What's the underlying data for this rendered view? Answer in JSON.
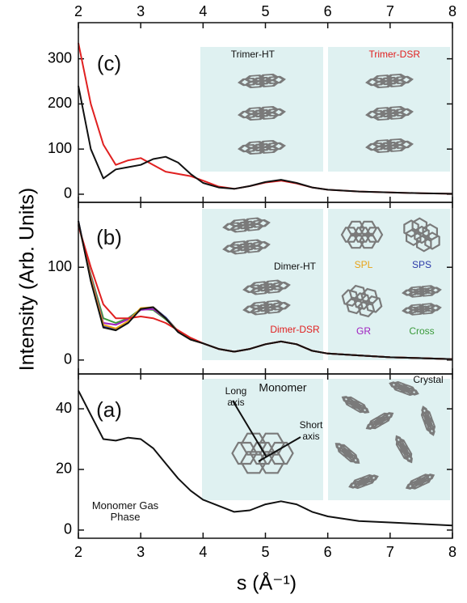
{
  "chart_data": [
    {
      "type": "line",
      "xlim": [
        2,
        8
      ],
      "xticks": [
        2,
        3,
        4,
        5,
        6,
        7,
        8
      ],
      "ylim": [
        -18,
        380
      ],
      "yticks": [
        0,
        100,
        200,
        300
      ],
      "annotations": [
        "(c)"
      ],
      "x": [
        2,
        2.2,
        2.4,
        2.6,
        2.8,
        3.0,
        3.2,
        3.4,
        3.6,
        3.8,
        4.0,
        4.25,
        4.5,
        4.75,
        5.0,
        5.25,
        5.5,
        5.75,
        6,
        6.5,
        7,
        7.5,
        8
      ],
      "series": [
        {
          "name": "Trimer-HT",
          "color": "#111111",
          "values": [
            240,
            100,
            35,
            55,
            60,
            65,
            78,
            83,
            70,
            45,
            25,
            15,
            12,
            18,
            27,
            32,
            25,
            15,
            10,
            6,
            4,
            2,
            1
          ]
        },
        {
          "name": "Trimer-DSR",
          "color": "#e02020",
          "values": [
            335,
            200,
            110,
            65,
            75,
            80,
            65,
            50,
            45,
            40,
            30,
            17,
            12,
            18,
            26,
            30,
            24,
            15,
            10,
            6,
            4,
            2,
            1
          ]
        }
      ]
    },
    {
      "type": "line",
      "xlim": [
        2,
        8
      ],
      "xticks": [
        2,
        3,
        4,
        5,
        6,
        7,
        8
      ],
      "ylim": [
        -15,
        170
      ],
      "yticks": [
        0,
        100
      ],
      "ylabel": "Intensity (Arb. Units)",
      "annotations": [
        "(b)"
      ],
      "x": [
        2,
        2.2,
        2.4,
        2.6,
        2.8,
        3.0,
        3.2,
        3.4,
        3.6,
        3.8,
        4.0,
        4.25,
        4.5,
        4.75,
        5.0,
        5.25,
        5.5,
        5.75,
        6,
        6.5,
        7,
        7.5,
        8
      ],
      "series": [
        {
          "name": "Dimer-HT",
          "color": "#111111",
          "values": [
            150,
            85,
            35,
            32,
            40,
            55,
            57,
            45,
            30,
            22,
            18,
            12,
            9,
            12,
            17,
            20,
            17,
            10,
            7,
            5,
            3,
            2,
            1
          ]
        },
        {
          "name": "Dimer-DSR",
          "color": "#e02020",
          "values": [
            145,
            100,
            60,
            45,
            45,
            47,
            45,
            40,
            32,
            24,
            18,
            12,
            9,
            12,
            17,
            20,
            17,
            10,
            7,
            5,
            3,
            2,
            1
          ]
        },
        {
          "name": "SPL",
          "color": "#e8a317",
          "values": [
            148,
            88,
            38,
            34,
            42,
            56,
            57,
            45,
            31,
            22,
            18,
            12,
            9,
            12,
            17,
            20,
            17,
            10,
            7,
            5,
            3,
            2,
            1
          ]
        },
        {
          "name": "SPS",
          "color": "#2b3aa8",
          "values": [
            150,
            86,
            36,
            33,
            41,
            55,
            57,
            46,
            31,
            22,
            18,
            12,
            9,
            12,
            17,
            20,
            17,
            10,
            7,
            5,
            3,
            2,
            1
          ]
        },
        {
          "name": "GR",
          "color": "#a020c0",
          "values": [
            147,
            90,
            40,
            38,
            44,
            54,
            55,
            45,
            31,
            22,
            18,
            12,
            9,
            12,
            17,
            20,
            17,
            10,
            7,
            5,
            3,
            2,
            1
          ]
        },
        {
          "name": "Cross",
          "color": "#3a9a3a",
          "values": [
            146,
            92,
            45,
            40,
            45,
            55,
            54,
            44,
            31,
            22,
            18,
            12,
            9,
            12,
            17,
            20,
            17,
            10,
            7,
            5,
            3,
            2,
            1
          ]
        }
      ]
    },
    {
      "type": "line",
      "xlim": [
        2,
        8
      ],
      "xticks": [
        2,
        3,
        4,
        5,
        6,
        7,
        8
      ],
      "ylim": [
        -2.7,
        51.5
      ],
      "yticks": [
        0,
        20,
        40
      ],
      "xlabel": "s (Å⁻¹)",
      "annotations": [
        "(a)",
        "Monomer",
        "Crystal",
        "Long axis",
        "Short axis"
      ],
      "x": [
        2,
        2.2,
        2.4,
        2.6,
        2.8,
        3.0,
        3.2,
        3.4,
        3.6,
        3.8,
        4.0,
        4.25,
        4.5,
        4.75,
        5.0,
        5.25,
        5.5,
        5.75,
        6,
        6.5,
        7,
        7.5,
        8
      ],
      "series": [
        {
          "name": "Monomer Gas Phase",
          "color": "#111111",
          "values": [
            46,
            38,
            30,
            29.5,
            30.5,
            30,
            27,
            22,
            17,
            13,
            10,
            8,
            6,
            6.5,
            8.5,
            9.5,
            8.5,
            6,
            4.5,
            3,
            2.5,
            2,
            1.5
          ]
        }
      ]
    }
  ]
}
